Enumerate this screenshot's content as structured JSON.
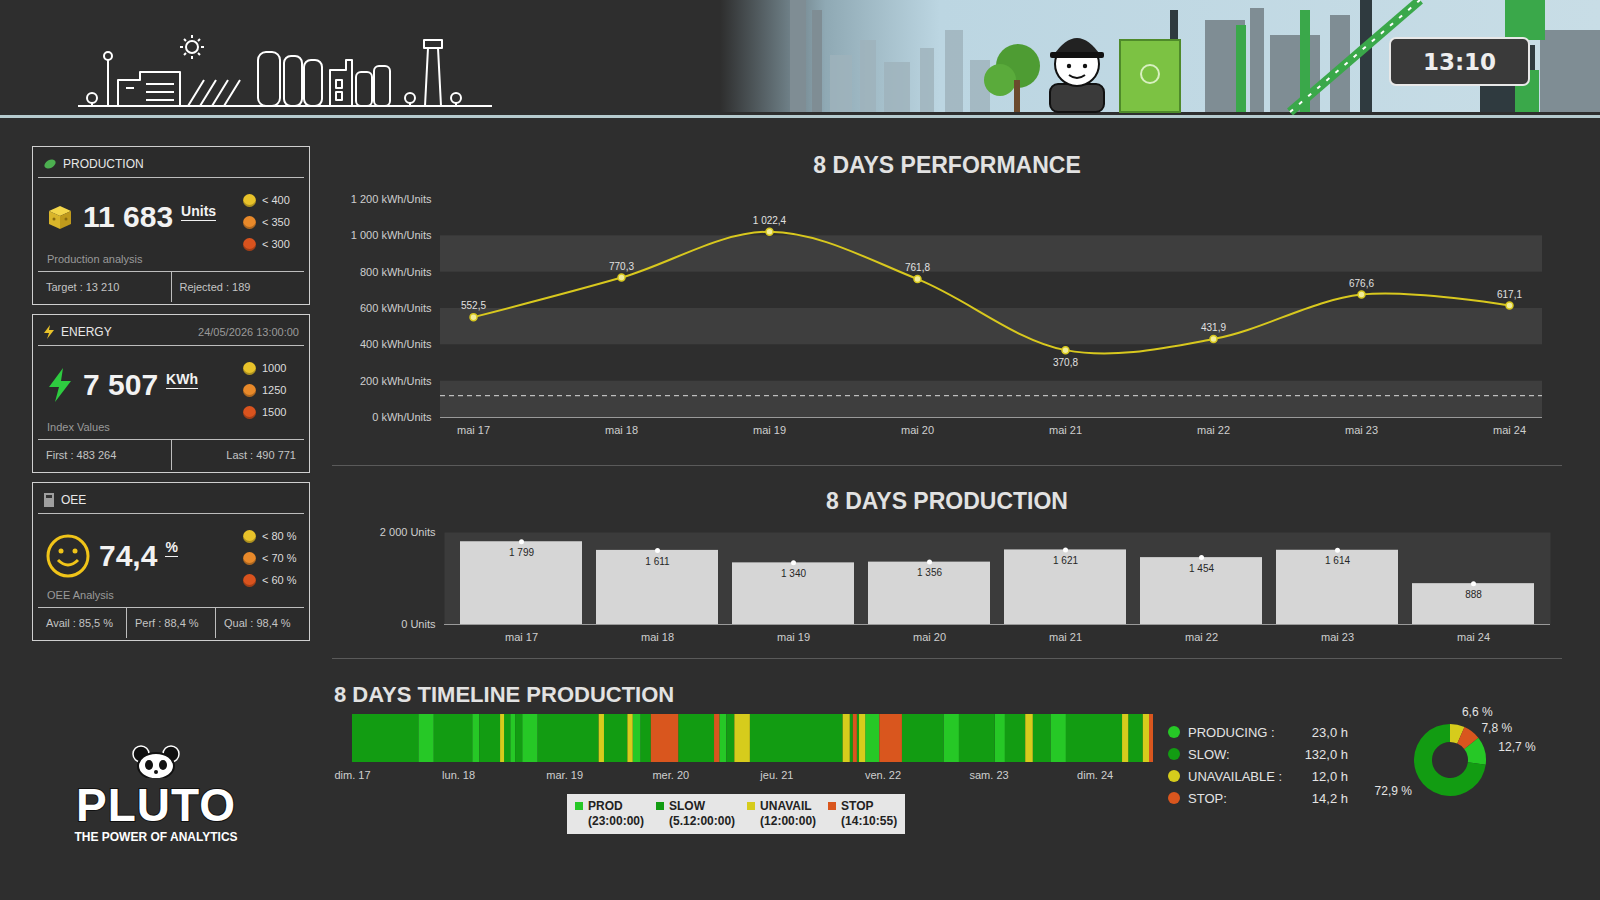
{
  "header": {
    "clock": "13:10"
  },
  "panels": [
    {
      "title": "PRODUCTION",
      "value": "11 683",
      "unit": "Units",
      "thresholds": [
        {
          "label": "< 400",
          "color": "#e8c22a"
        },
        {
          "label": "< 350",
          "color": "#e8892a"
        },
        {
          "label": "< 300",
          "color": "#d9531e"
        }
      ],
      "subtitle": "Production analysis",
      "footer": [
        "Target : 13 210",
        "Rejected : 189"
      ]
    },
    {
      "title": "ENERGY",
      "date": "24/05/2026 13:00:00",
      "value": "7 507",
      "unit": "KWh",
      "thresholds": [
        {
          "label": "1000",
          "color": "#e8c22a"
        },
        {
          "label": "1250",
          "color": "#e8892a"
        },
        {
          "label": "1500",
          "color": "#d9531e"
        }
      ],
      "subtitle": "Index Values",
      "footer": [
        "First : 483 264",
        "Last : 490 771"
      ]
    },
    {
      "title": "OEE",
      "value": "74,4",
      "unit": "%",
      "thresholds": [
        {
          "label": "< 80 %",
          "color": "#e8c22a"
        },
        {
          "label": "< 70 %",
          "color": "#e8892a"
        },
        {
          "label": "< 60 %",
          "color": "#d9531e"
        }
      ],
      "subtitle": "OEE Analysis",
      "footer": [
        "Avail : 85,5 %",
        "Perf : 88,4 %",
        "Qual : 98,4 %"
      ]
    }
  ],
  "logo": {
    "name": "PLUTO",
    "tagline": "THE POWER OF ANALYTICS"
  },
  "chart_data": [
    {
      "type": "line",
      "title": "8 DAYS PERFORMANCE",
      "categories": [
        "mai 17",
        "mai 18",
        "mai 19",
        "mai 20",
        "mai 21",
        "mai 22",
        "mai 23",
        "mai 24"
      ],
      "values": [
        552.5,
        770.3,
        1022.4,
        761.8,
        370.8,
        431.9,
        676.6,
        617.1
      ],
      "value_labels": [
        "552,5",
        "770,3",
        "1 022,4",
        "761,8",
        "370,8",
        "431,9",
        "676,6",
        "617,1"
      ],
      "color": "#d8c81e",
      "marker": "circle",
      "line_style": "solid",
      "data_labels": true,
      "ylim": [
        0,
        1200
      ],
      "yticks": [
        {
          "value": 0,
          "label": "0 kWh/Units"
        },
        {
          "value": 200,
          "label": "200 kWh/Units"
        },
        {
          "value": 400,
          "label": "400 kWh/Units"
        },
        {
          "value": 600,
          "label": "600 kWh/Units"
        },
        {
          "value": 800,
          "label": "800 kWh/Units"
        },
        {
          "value": 1000,
          "label": "1 000 kWh/Units"
        },
        {
          "value": 1200,
          "label": "1 200 kWh/Units"
        }
      ],
      "grid": true,
      "reference_line": 120
    },
    {
      "type": "bar",
      "title": "8 DAYS PRODUCTION",
      "categories": [
        "mai 17",
        "mai 18",
        "mai 19",
        "mai 20",
        "mai 21",
        "mai 22",
        "mai 23",
        "mai 24"
      ],
      "values": [
        1799,
        1611,
        1340,
        1356,
        1621,
        1454,
        1614,
        888
      ],
      "value_labels": [
        "1 799",
        "1 611",
        "1 340",
        "1 356",
        "1 621",
        "1 454",
        "1 614",
        "888"
      ],
      "color": "#d6d6d6",
      "data_labels": true,
      "ylim": [
        0,
        2000
      ],
      "yticks": [
        {
          "value": 0,
          "label": "0 Units"
        },
        {
          "value": 2000,
          "label": "2 000 Units"
        }
      ]
    },
    {
      "type": "timeline",
      "title": "8 DAYS TIMELINE PRODUCTION",
      "xlim": [
        0,
        181.2
      ],
      "xticks": [
        {
          "value": 0,
          "label": "dim. 17"
        },
        {
          "value": 24,
          "label": "lun. 18"
        },
        {
          "value": 48,
          "label": "mar. 19"
        },
        {
          "value": 72,
          "label": "mer. 20"
        },
        {
          "value": 96,
          "label": "jeu. 21"
        },
        {
          "value": 120,
          "label": "ven. 22"
        },
        {
          "value": 144,
          "label": "sam. 23"
        },
        {
          "value": 168,
          "label": "dim. 24"
        }
      ],
      "legend": "bottom",
      "series": [
        {
          "name": "PROD",
          "duration": "(23:00:00)",
          "color": "#26c826",
          "segments": [
            [
              15,
              18.5
            ],
            [
              27.2,
              28.8
            ],
            [
              35.8,
              36.9
            ],
            [
              38.5,
              42
            ],
            [
              63.5,
              65.3
            ],
            [
              83.1,
              84.7
            ],
            [
              116.1,
              119.3
            ],
            [
              133.8,
              137.3
            ],
            [
              145.4,
              147.7
            ],
            [
              158,
              161.5
            ]
          ]
        },
        {
          "name": "SLOW",
          "duration": "(5.12:00:00)",
          "color": "#129c12",
          "segments": [
            [
              0,
              15
            ],
            [
              18.5,
              27.2
            ],
            [
              28.8,
              33.5
            ],
            [
              34.4,
              35.8
            ],
            [
              36.9,
              38.5
            ],
            [
              42,
              55.8
            ],
            [
              57,
              62.3
            ],
            [
              65.3,
              67.6
            ],
            [
              73.8,
              81.9
            ],
            [
              84.7,
              86.5
            ],
            [
              90,
              111
            ],
            [
              112.6,
              113.3
            ],
            [
              114.2,
              114.7
            ],
            [
              124.4,
              133.8
            ],
            [
              137.3,
              145.4
            ],
            [
              147.7,
              152.3
            ],
            [
              154,
              158
            ],
            [
              161.5,
              174.2
            ],
            [
              175.6,
              178.9
            ]
          ]
        },
        {
          "name": "UNAVAIL",
          "duration": "(12:00:00)",
          "color": "#d6cc1c",
          "segments": [
            [
              33.5,
              34.4
            ],
            [
              55.8,
              57
            ],
            [
              62.3,
              63.5
            ],
            [
              86.5,
              90
            ],
            [
              111,
              112.6
            ],
            [
              114.7,
              116.1
            ],
            [
              152.3,
              154
            ],
            [
              174.2,
              175.6
            ],
            [
              178.9,
              180.3
            ]
          ]
        },
        {
          "name": "STOP",
          "duration": "(14:10:55)",
          "color": "#d9561e",
          "segments": [
            [
              67.6,
              73.8
            ],
            [
              81.9,
              83.1
            ],
            [
              113.3,
              114.2
            ],
            [
              119.3,
              124.4
            ],
            [
              180.3,
              181.2
            ]
          ]
        }
      ]
    },
    {
      "type": "pie",
      "categories": [
        "PRODUCING :",
        "SLOW:",
        "UNAVAILABLE :",
        "STOP:"
      ],
      "values": [
        12.7,
        72.9,
        6.6,
        7.8
      ],
      "value_labels": [
        "12,7 %",
        "72,9 %",
        "6,6 %",
        "7,8 %"
      ],
      "hours": [
        23.0,
        132.0,
        12.0,
        14.2
      ],
      "hour_labels": [
        "23,0 h",
        "132,0 h",
        "12,0 h",
        "14,2 h"
      ],
      "colors": [
        "#26c826",
        "#129c12",
        "#d6cc1c",
        "#d9561e"
      ],
      "legend": "left",
      "data_labels": true
    }
  ]
}
